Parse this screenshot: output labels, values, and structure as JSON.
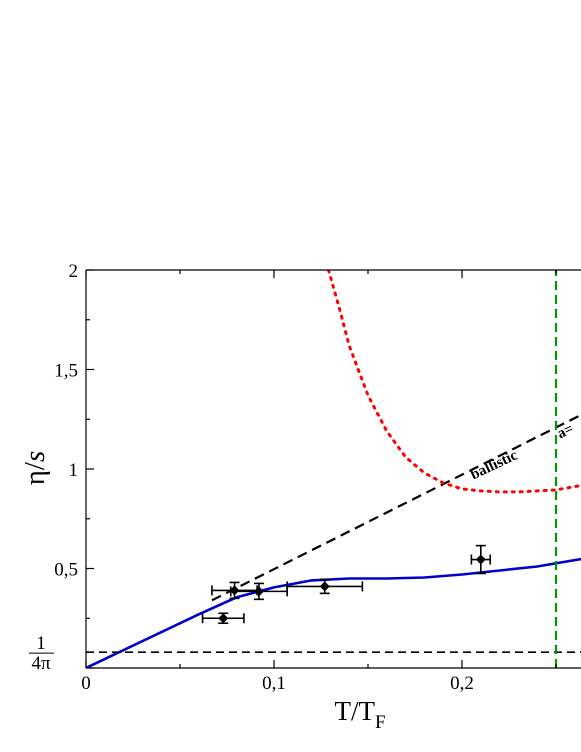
{
  "chart_data": {
    "type": "line",
    "title": "",
    "xlabel": {
      "main": "T/T",
      "sub": "F"
    },
    "ylabel": {
      "main": "η/",
      "italic": "s"
    },
    "xlim": [
      0,
      0.265
    ],
    "ylim": [
      0,
      2
    ],
    "grid": false,
    "x_ticks": [
      {
        "value": 0,
        "label": "0"
      },
      {
        "value": 0.1,
        "label": "0,1"
      },
      {
        "value": 0.2,
        "label": "0,2"
      }
    ],
    "y_ticks": [
      {
        "value": 0.5,
        "label": "0,5"
      },
      {
        "value": 1,
        "label": "1"
      },
      {
        "value": 1.5,
        "label": "1,5"
      },
      {
        "value": 2,
        "label": "2"
      }
    ],
    "y_special_tick": {
      "value": 0.0796,
      "numerator": "1",
      "denominator": "4π"
    },
    "series": [
      {
        "style": "solid",
        "color": "#0000cc",
        "points": [
          [
            0,
            0
          ],
          [
            0.02,
            0.09
          ],
          [
            0.04,
            0.18
          ],
          [
            0.06,
            0.27
          ],
          [
            0.08,
            0.355
          ],
          [
            0.1,
            0.405
          ],
          [
            0.12,
            0.44
          ],
          [
            0.14,
            0.45
          ],
          [
            0.16,
            0.45
          ],
          [
            0.18,
            0.455
          ],
          [
            0.2,
            0.47
          ],
          [
            0.22,
            0.49
          ],
          [
            0.24,
            0.51
          ],
          [
            0.265,
            0.55
          ]
        ]
      },
      {
        "style": "dashed",
        "color": "#000000",
        "points": [
          [
            0.067,
            0.34
          ],
          [
            0.265,
            1.28
          ]
        ]
      },
      {
        "style": "dotted",
        "color": "#ff0000",
        "points": [
          [
            0.129,
            2.0
          ],
          [
            0.135,
            1.8
          ],
          [
            0.14,
            1.62
          ],
          [
            0.15,
            1.37
          ],
          [
            0.16,
            1.19
          ],
          [
            0.17,
            1.06
          ],
          [
            0.18,
            0.98
          ],
          [
            0.19,
            0.93
          ],
          [
            0.2,
            0.9
          ],
          [
            0.21,
            0.89
          ],
          [
            0.22,
            0.885
          ],
          [
            0.23,
            0.885
          ],
          [
            0.24,
            0.89
          ],
          [
            0.25,
            0.895
          ],
          [
            0.265,
            0.92
          ]
        ]
      },
      {
        "style": "dashed",
        "color": "#000000",
        "points": [
          [
            0,
            0.0796
          ],
          [
            0.265,
            0.0796
          ]
        ]
      },
      {
        "style": "dashed",
        "color": "#009900",
        "points": [
          [
            0.25,
            0
          ],
          [
            0.25,
            2
          ]
        ]
      }
    ],
    "data_points": [
      {
        "x": 0.073,
        "y": 0.25,
        "xerr": 0.011,
        "yerr": 0.025
      },
      {
        "x": 0.079,
        "y": 0.39,
        "xerr": 0.012,
        "yerr": 0.04
      },
      {
        "x": 0.092,
        "y": 0.385,
        "xerr": 0.015,
        "yerr": 0.04
      },
      {
        "x": 0.127,
        "y": 0.41,
        "xerr": 0.02,
        "yerr": 0.035
      },
      {
        "x": 0.21,
        "y": 0.545,
        "xerr": 0.005,
        "yerr": 0.07
      }
    ],
    "annotations": [
      {
        "text": "ballistic",
        "x": 0.218,
        "y": 1.0,
        "angle": -25.4
      },
      {
        "text": "a=",
        "x": 0.256,
        "y": 1.17,
        "angle": -25.4
      }
    ]
  }
}
